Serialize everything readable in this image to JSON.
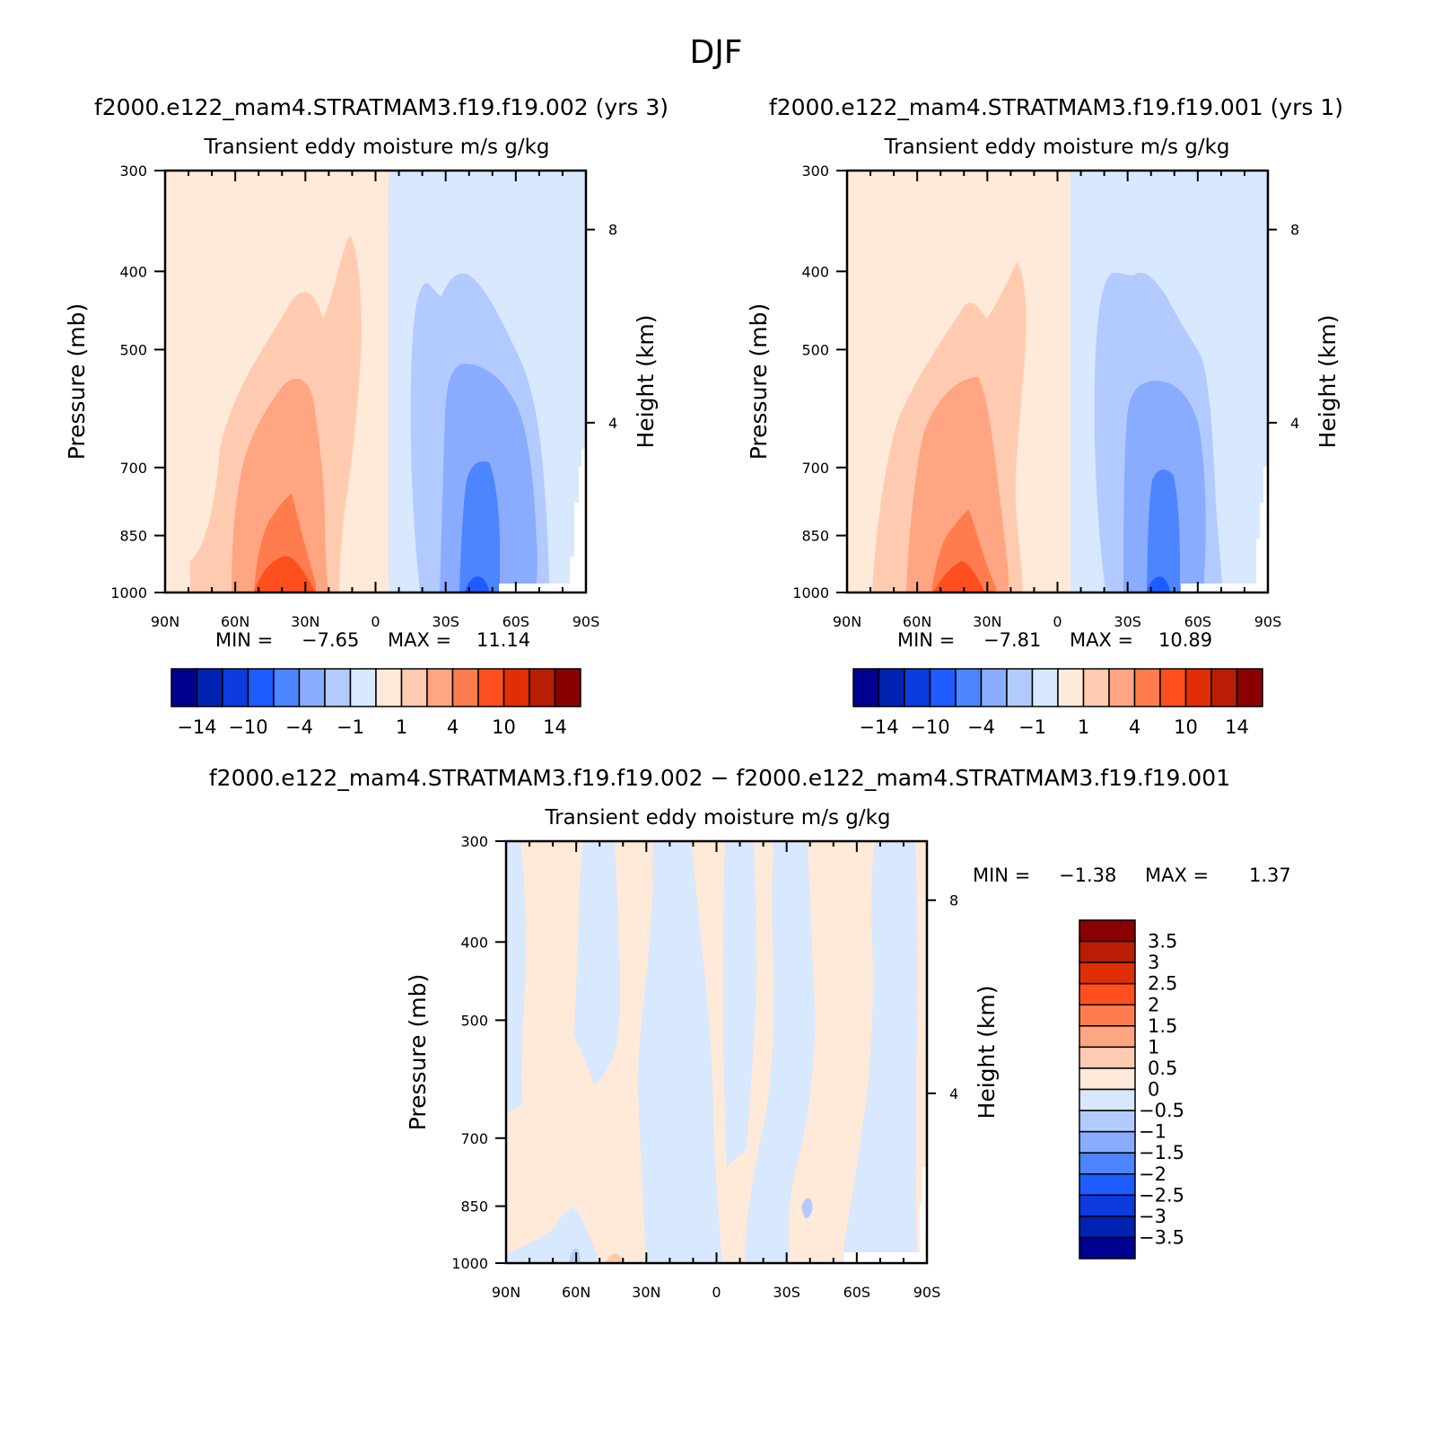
{
  "figure": {
    "season": "DJF",
    "top_left_title": "f2000.e122_mam4.STRATMAM3.f19.f19.002 (yrs 3)",
    "top_right_title": "f2000.e122_mam4.STRATMAM3.f19.f19.001 (yrs 1)",
    "diff_title": "f2000.e122_mam4.STRATMAM3.f19.f19.002 − f2000.e122_mam4.STRATMAM3.f19.f19.001"
  },
  "chart_data": [
    {
      "type": "contour",
      "title": "Transient eddy moisture m/s g/kg",
      "xlabel": "",
      "ylabel": "Pressure (mb)",
      "ylabel_right": "Height (km)",
      "x_ticks": [
        "90N",
        "60N",
        "30N",
        "0",
        "30S",
        "60S",
        "90S"
      ],
      "y_ticks": [
        "300",
        "400",
        "500",
        "700",
        "850",
        "1000"
      ],
      "right_ticks": [
        "8",
        "4"
      ],
      "ylim": [
        1000,
        300
      ],
      "y_scale": "log",
      "min_label": "MIN =",
      "min_value": "−7.65",
      "max_label": "MAX =",
      "max_value": "11.14",
      "colorbar_labels": [
        "−14",
        "−10",
        "−4",
        "−1",
        "1",
        "4",
        "10",
        "14"
      ],
      "colorbar_colors": [
        "#000090",
        "#0022b0",
        "#0c3be0",
        "#1e5cff",
        "#4d84ff",
        "#8aacff",
        "#b3caff",
        "#d7e8ff",
        "#ffe9d8",
        "#ffcbb0",
        "#ffa581",
        "#ff7c4e",
        "#ff4f1f",
        "#e02e05",
        "#b91d04",
        "#8a0000"
      ],
      "maxima": [
        {
          "region": "northern hemisphere positive maximum",
          "lat": "~35N",
          "pressure_mb": "near 1000",
          "approx_value": 11.14
        },
        {
          "region": "southern hemisphere negative minimum",
          "lat": "~45S",
          "pressure_mb": "near 1000",
          "approx_value": -7.65
        }
      ]
    },
    {
      "type": "contour",
      "title": "Transient eddy moisture m/s g/kg",
      "xlabel": "",
      "ylabel": "Pressure (mb)",
      "ylabel_right": "Height (km)",
      "x_ticks": [
        "90N",
        "60N",
        "30N",
        "0",
        "30S",
        "60S",
        "90S"
      ],
      "y_ticks": [
        "300",
        "400",
        "500",
        "700",
        "850",
        "1000"
      ],
      "right_ticks": [
        "8",
        "4"
      ],
      "ylim": [
        1000,
        300
      ],
      "y_scale": "log",
      "min_label": "MIN =",
      "min_value": "−7.81",
      "max_label": "MAX =",
      "max_value": "10.89",
      "colorbar_labels": [
        "−14",
        "−10",
        "−4",
        "−1",
        "1",
        "4",
        "10",
        "14"
      ],
      "colorbar_colors": [
        "#000090",
        "#0022b0",
        "#0c3be0",
        "#1e5cff",
        "#4d84ff",
        "#8aacff",
        "#b3caff",
        "#d7e8ff",
        "#ffe9d8",
        "#ffcbb0",
        "#ffa581",
        "#ff7c4e",
        "#ff4f1f",
        "#e02e05",
        "#b91d04",
        "#8a0000"
      ],
      "maxima": [
        {
          "region": "northern hemisphere positive maximum",
          "lat": "~35N",
          "pressure_mb": "near 1000",
          "approx_value": 10.89
        },
        {
          "region": "southern hemisphere negative minimum",
          "lat": "~45S",
          "pressure_mb": "near 1000",
          "approx_value": -7.81
        }
      ]
    },
    {
      "type": "contour",
      "title": "Transient eddy moisture m/s g/kg",
      "xlabel": "",
      "ylabel": "Pressure (mb)",
      "ylabel_right": "Height (km)",
      "x_ticks": [
        "90N",
        "60N",
        "30N",
        "0",
        "30S",
        "60S",
        "90S"
      ],
      "y_ticks": [
        "300",
        "400",
        "500",
        "700",
        "850",
        "1000"
      ],
      "right_ticks": [
        "8",
        "4"
      ],
      "ylim": [
        1000,
        300
      ],
      "y_scale": "log",
      "min_label": "MIN =",
      "min_value": "−1.38",
      "max_label": "MAX =",
      "max_value": "1.37",
      "colorbar_labels": [
        "3.5",
        "3",
        "2.5",
        "2",
        "1.5",
        "1",
        "0.5",
        "0",
        "−0.5",
        "−1",
        "−1.5",
        "−2",
        "−2.5",
        "−3",
        "−3.5"
      ],
      "colorbar_colors": [
        "#8a0000",
        "#b91d04",
        "#e02e05",
        "#ff4f1f",
        "#ff7c4e",
        "#ffa581",
        "#ffcbb0",
        "#ffe9d8",
        "#d7e8ff",
        "#b3caff",
        "#8aacff",
        "#4d84ff",
        "#1e5cff",
        "#0c3be0",
        "#0022b0",
        "#000090"
      ]
    }
  ]
}
